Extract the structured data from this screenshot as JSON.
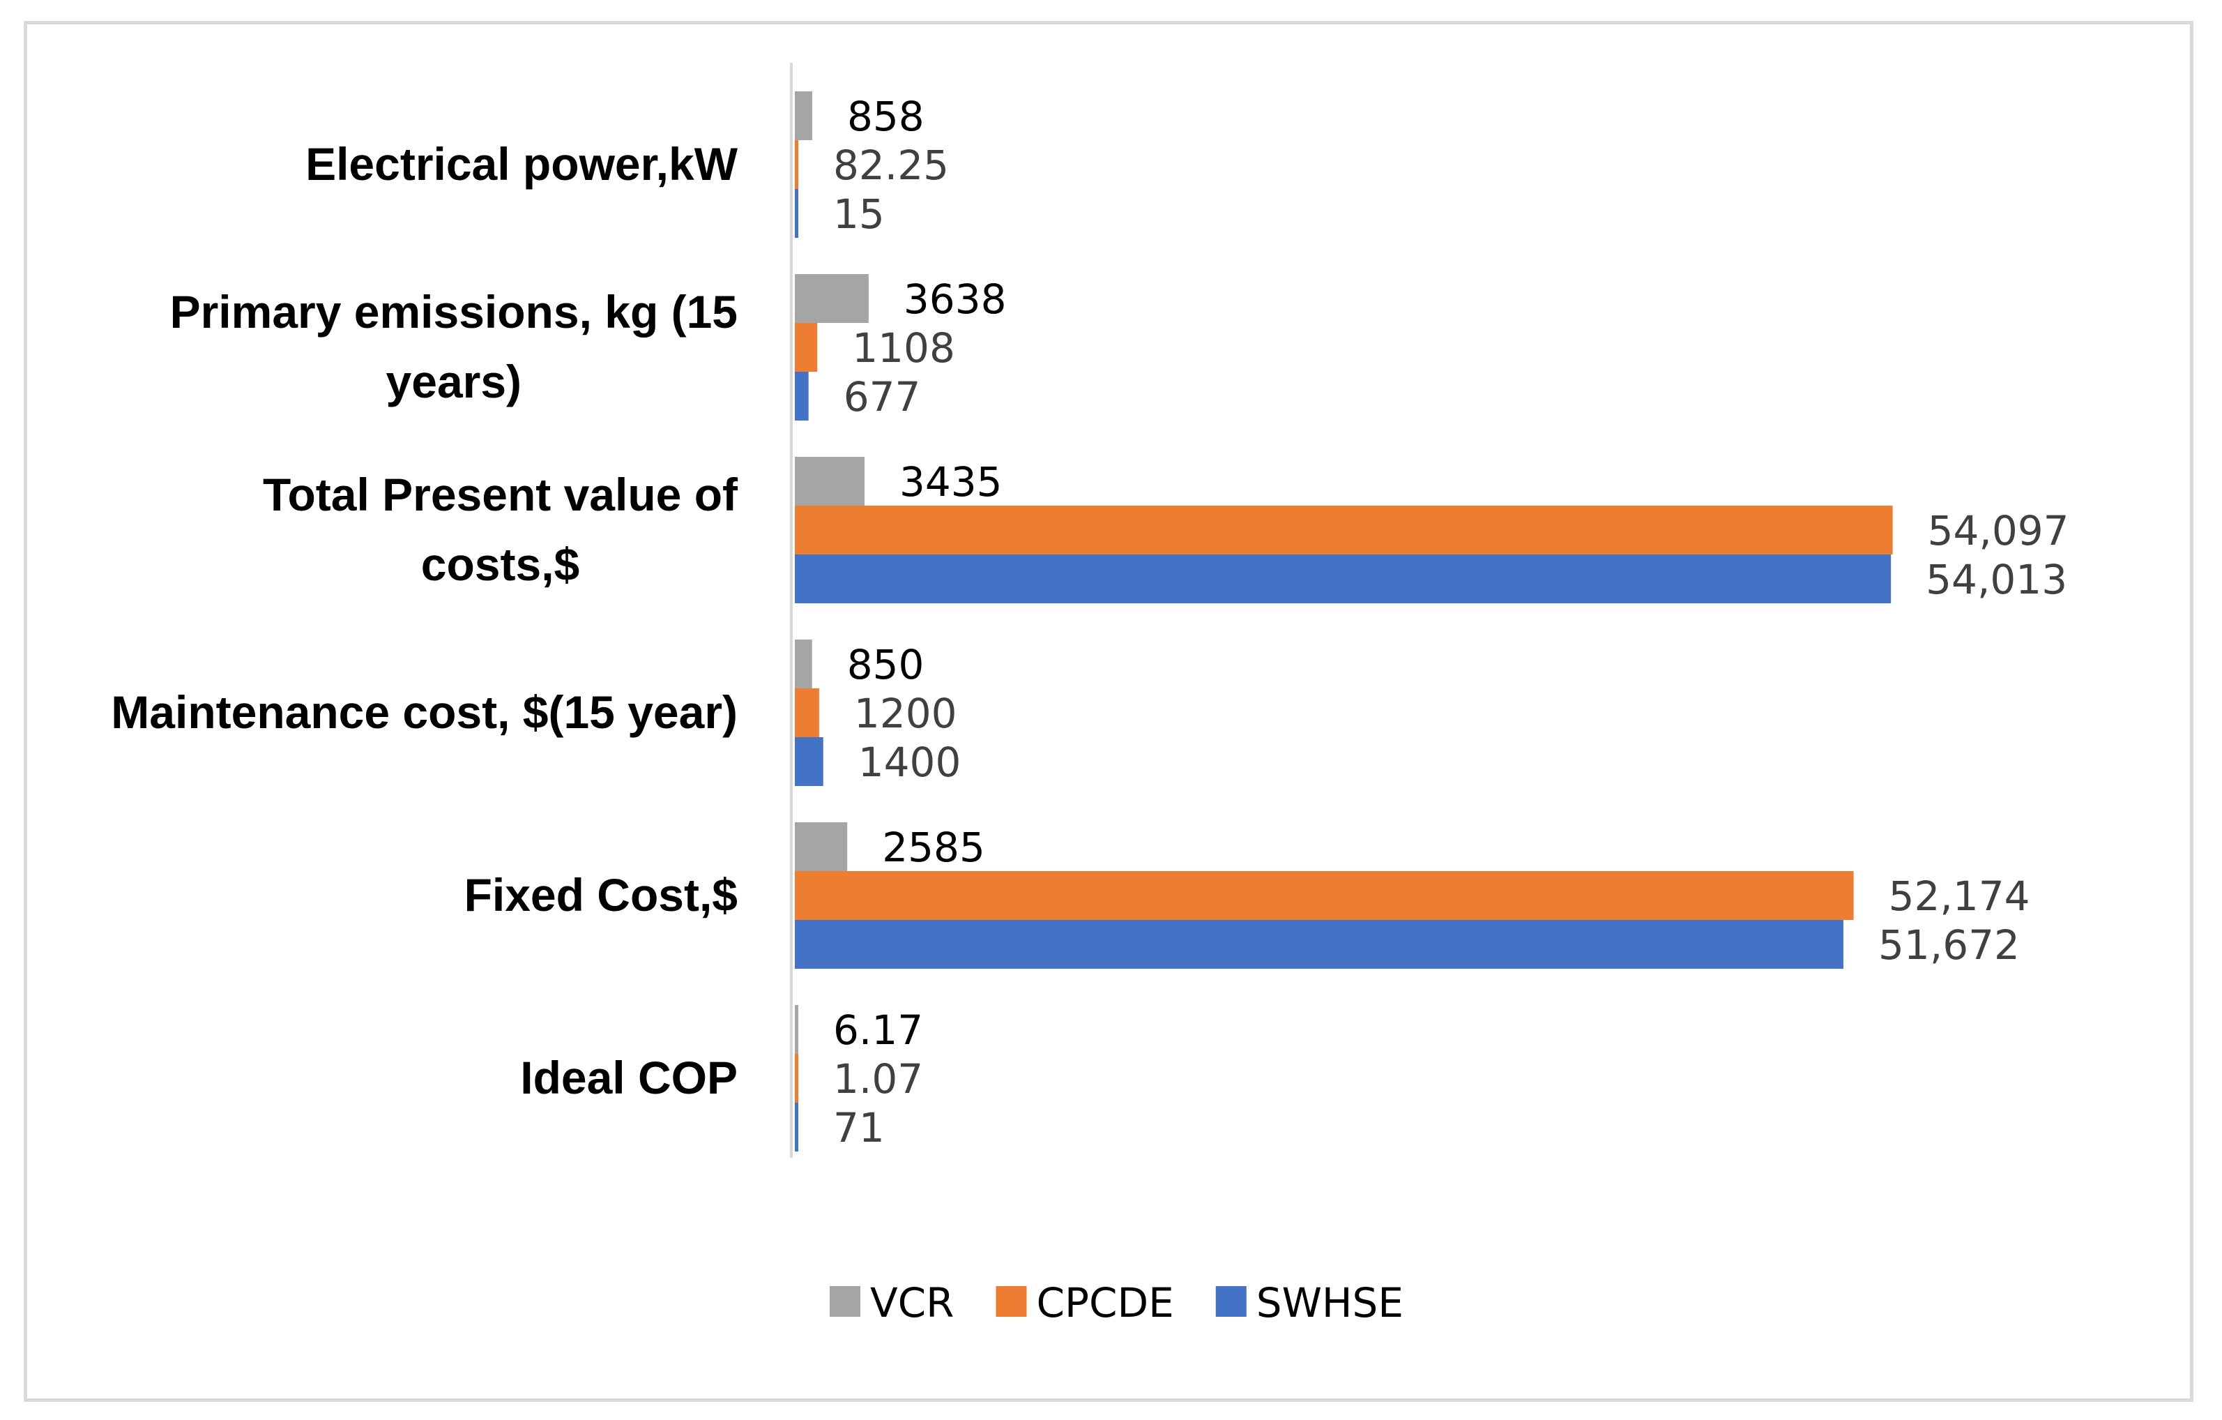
{
  "chart_data": {
    "type": "bar",
    "orientation": "horizontal",
    "title": "",
    "xlabel": "",
    "ylabel": "",
    "grid": false,
    "legend_position": "bottom",
    "xlim": [
      0,
      56000
    ],
    "categories": [
      [
        "Electrical power,kW"
      ],
      [
        "Primary emissions, kg (15",
        "years)"
      ],
      [
        "Total Present value of",
        "costs,$"
      ],
      [
        "Maintenance cost, $(15 year)"
      ],
      [
        "Fixed Cost,$"
      ],
      [
        "Ideal COP"
      ]
    ],
    "series": [
      {
        "name": "VCR",
        "color": "#a5a5a5",
        "label_color": "#000000",
        "values": [
          858,
          3638,
          3435,
          850,
          2585,
          6.17
        ],
        "labels": [
          "858",
          "3638",
          "3435",
          "850",
          "2585",
          "6.17"
        ]
      },
      {
        "name": "CPCDE",
        "color": "#ed7d31",
        "label_color": "#404040",
        "values": [
          82.25,
          1108,
          54097,
          1200,
          52174,
          1.07
        ],
        "labels": [
          "82.25",
          "1108",
          "54,097",
          "1200",
          "52,174",
          "1.07"
        ]
      },
      {
        "name": "SWHSE",
        "color": "#4472c4",
        "label_color": "#404040",
        "values": [
          15,
          677,
          54013,
          1400,
          51672,
          71
        ],
        "labels": [
          "15",
          "677",
          "54,013",
          "1400",
          "51,672",
          "71"
        ]
      }
    ]
  }
}
